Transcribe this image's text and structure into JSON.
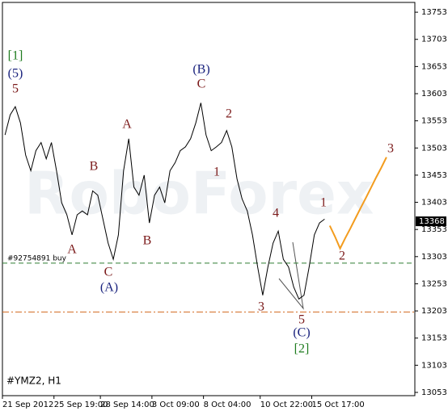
{
  "chart_data": {
    "type": "line",
    "watermark": "RoboForex",
    "symbol_label": "#YMZ2, H1",
    "categories": [
      "21 Sep 2012",
      null,
      null,
      null,
      null,
      null,
      null,
      null,
      null,
      null,
      "25 Sep 19:00",
      null,
      null,
      null,
      null,
      null,
      null,
      null,
      null,
      "28 Sep 14:00",
      null,
      null,
      null,
      null,
      null,
      null,
      null,
      null,
      null,
      "3 Oct 09:00",
      null,
      null,
      null,
      null,
      null,
      null,
      null,
      null,
      null,
      "8 Oct 04:00",
      null,
      null,
      null,
      null,
      null,
      null,
      null,
      null,
      null,
      null,
      "10 Oct 22:00",
      null,
      null,
      null,
      null,
      null,
      null,
      null,
      null,
      null,
      "15 Oct 17:00",
      null,
      null,
      null,
      null,
      null,
      null,
      null,
      null,
      null,
      null,
      null,
      null,
      null,
      null,
      null,
      null,
      null,
      null,
      null
    ],
    "series": [
      {
        "color": "#000000",
        "values": [
          13527,
          13564,
          13579,
          13549,
          13490,
          13461,
          13498,
          13513,
          13483,
          13513,
          13461,
          13402,
          13380,
          13343,
          13380,
          13387,
          13380,
          13424,
          13416,
          13372,
          13328,
          13298,
          13343,
          13461,
          13520,
          13431,
          13416,
          13453,
          13365,
          13416,
          13431,
          13402,
          13461,
          13476,
          13498,
          13505,
          13520,
          13549,
          13586,
          13527,
          13498,
          13505,
          13513,
          13535,
          13505,
          13446,
          13409,
          13387,
          13343,
          13284,
          13232,
          13284,
          13328,
          13350,
          13298,
          13284,
          13247,
          13225,
          13232,
          13284,
          13343,
          13365,
          13372,
          null,
          null,
          null,
          null,
          null,
          null,
          null,
          null,
          null,
          null,
          null,
          null,
          null,
          null,
          null,
          null,
          null
        ]
      },
      {
        "color": "#f39c1e",
        "values": [
          null,
          null,
          null,
          null,
          null,
          null,
          null,
          null,
          null,
          null,
          null,
          null,
          null,
          null,
          null,
          null,
          null,
          null,
          null,
          null,
          null,
          null,
          null,
          null,
          null,
          null,
          null,
          null,
          null,
          null,
          null,
          null,
          null,
          null,
          null,
          null,
          null,
          null,
          null,
          null,
          null,
          null,
          null,
          null,
          null,
          null,
          null,
          null,
          null,
          null,
          null,
          null,
          null,
          null,
          null,
          null,
          null,
          null,
          null,
          null,
          null,
          null,
          null,
          13360,
          13340,
          13318,
          13337,
          13355,
          13374,
          13393,
          13411,
          13430,
          13449,
          13467,
          13486,
          null,
          null,
          null,
          null,
          null
        ]
      }
    ],
    "levels": [
      {
        "label": "#92754891 buy",
        "value": 13291,
        "color": "#2e7d32"
      },
      {
        "value": 13201,
        "color": "#d2691e"
      }
    ],
    "last_price": 13368,
    "wave_labels": [
      {
        "text": "[1]",
        "color": "#1e7b1e"
      },
      {
        "text": "(5)",
        "color": "#1a237e"
      },
      {
        "text": "5",
        "color": "#7b1a1a"
      },
      {
        "text": "A",
        "color": "#7b1a1a"
      },
      {
        "text": "B",
        "color": "#7b1a1a"
      },
      {
        "text": "C",
        "color": "#7b1a1a"
      },
      {
        "text": "(A)",
        "color": "#1a237e"
      },
      {
        "text": "A",
        "color": "#7b1a1a"
      },
      {
        "text": "B",
        "color": "#7b1a1a"
      },
      {
        "text": "(B)",
        "color": "#1a237e"
      },
      {
        "text": "C",
        "color": "#7b1a1a"
      },
      {
        "text": "2",
        "color": "#7b1a1a"
      },
      {
        "text": "1",
        "color": "#7b1a1a"
      },
      {
        "text": "4",
        "color": "#7b1a1a"
      },
      {
        "text": "3",
        "color": "#7b1a1a"
      },
      {
        "text": "5",
        "color": "#7b1a1a"
      },
      {
        "text": "(C)",
        "color": "#1a237e"
      },
      {
        "text": "[2]",
        "color": "#1e7b1e"
      },
      {
        "text": "1",
        "color": "#7b1a1a"
      },
      {
        "text": "2",
        "color": "#7b1a1a"
      },
      {
        "text": "3",
        "color": "#7b1a1a"
      }
    ],
    "ylim": [
      13047,
      13771
    ],
    "yticks": [
      13053,
      13103,
      13153,
      13203,
      13253,
      13303,
      13353,
      13403,
      13453,
      13503,
      13553,
      13603,
      13653,
      13703,
      13753
    ]
  }
}
